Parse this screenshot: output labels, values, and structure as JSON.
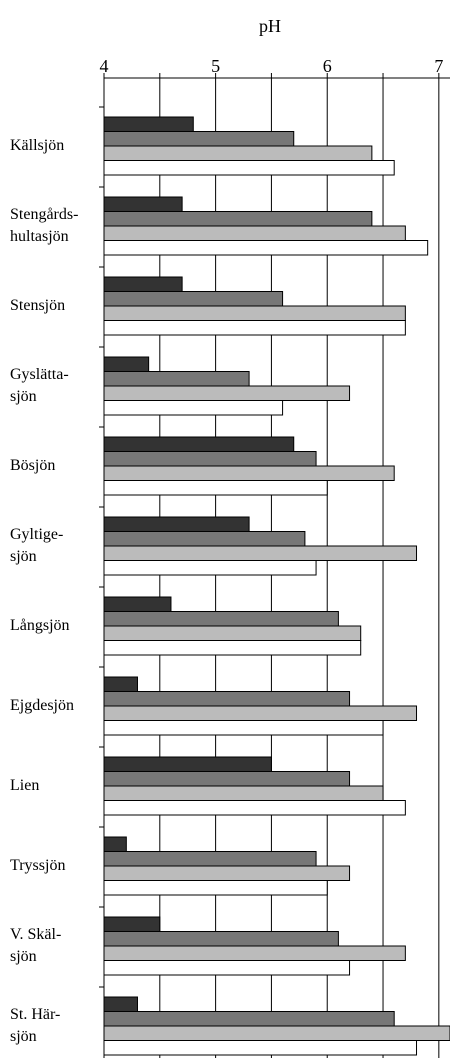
{
  "chart_data": {
    "type": "hbar",
    "title": "pH",
    "categories": [
      "Källsjön",
      "Stengårds-\nhultasjön",
      "Stensjön",
      "Gyslätta-\nsjön",
      "Bösjön",
      "Gyltige-\nsjön",
      "Långsjön",
      "Ejgdesjön",
      "Lien",
      "Tryssjön",
      "V. Skäl-\nsjön",
      "St. Här-\nsjön"
    ],
    "series": [
      {
        "color": "#333333",
        "values": [
          4.8,
          4.7,
          4.7,
          4.4,
          5.7,
          5.3,
          4.6,
          4.3,
          5.5,
          4.2,
          4.5,
          4.3
        ]
      },
      {
        "color": "#777777",
        "values": [
          5.7,
          6.4,
          5.6,
          5.3,
          5.9,
          5.8,
          6.1,
          6.2,
          6.2,
          5.9,
          6.1,
          6.6
        ]
      },
      {
        "color": "#bbbbbb",
        "values": [
          6.4,
          6.7,
          6.7,
          6.2,
          6.6,
          6.8,
          6.3,
          6.8,
          6.5,
          6.2,
          6.7,
          7.1
        ]
      },
      {
        "color": "#ffffff",
        "values": [
          6.6,
          6.9,
          6.7,
          5.6,
          6.0,
          5.9,
          6.3,
          6.5,
          6.7,
          6.0,
          6.2,
          6.8
        ]
      }
    ],
    "xlim": [
      4,
      7.1
    ],
    "xticks": [
      4,
      5,
      6,
      7
    ],
    "xminorticks": [
      4.5,
      5.5,
      6.5
    ],
    "grid": true
  }
}
